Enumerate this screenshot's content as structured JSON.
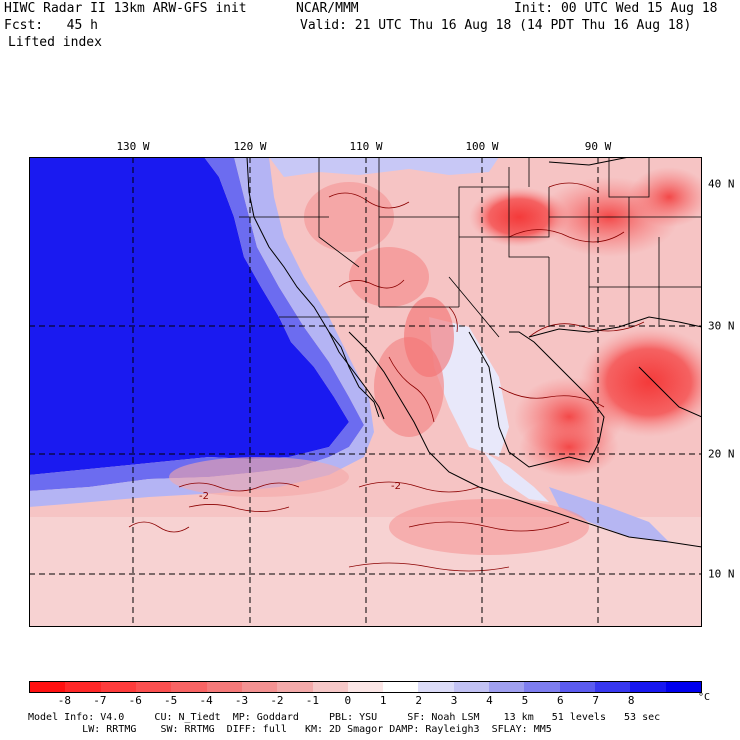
{
  "header": {
    "model": "HIWC Radar II 13km ARW-GFS init",
    "org": "NCAR/MMM",
    "init": "Init: 00 UTC Wed 15 Aug 18",
    "fcst": "Fcst:   45 h",
    "valid": "Valid: 21 UTC Thu 16 Aug 18 (14 PDT Thu 16 Aug 18)",
    "field": "Lifted index"
  },
  "map": {
    "lon_labels": [
      "130 W",
      "120 W",
      "110 W",
      "100 W",
      "90 W"
    ],
    "lat_labels": [
      "40 N",
      "30 N",
      "20 N",
      "10 N"
    ]
  },
  "colorbar": {
    "labels": [
      "-8",
      "-7",
      "-6",
      "-5",
      "-4",
      "-3",
      "-2",
      "-1",
      "0",
      "1",
      "2",
      "3",
      "4",
      "5",
      "6",
      "7",
      "8"
    ],
    "unit": "°C",
    "colors": [
      "#ff1010",
      "#ff2828",
      "#fe3c3c",
      "#fb5050",
      "#f86464",
      "#f57a7a",
      "#f39292",
      "#f3aaaa",
      "#f6c8c8",
      "#fbe6e6",
      "#ffffff",
      "#dcdcf8",
      "#c2c2f4",
      "#a0a0f0",
      "#7e7ef0",
      "#5c5cf0",
      "#3838f0",
      "#1818f0",
      "#0000ee"
    ]
  },
  "footer": {
    "line1": "Model Info: V4.0     CU: N_Tiedt  MP: Goddard     PBL: YSU     SF: Noah LSM    13 km   51 levels   53 sec",
    "line2": "         LW: RRTMG    SW: RRTMG  DIFF: full   KM: 2D Smagor DAMP: Rayleigh3  SFLAY: MM5"
  }
}
